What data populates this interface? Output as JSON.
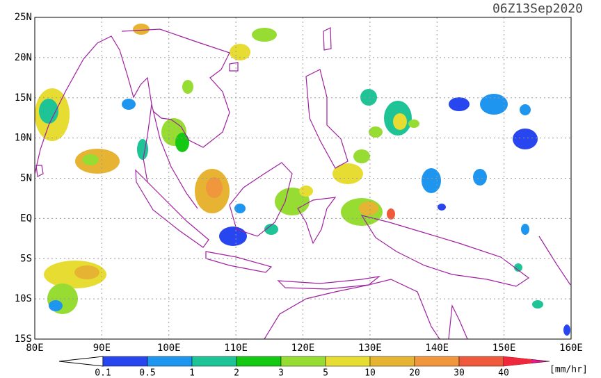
{
  "title": "06Z13Sep2020",
  "lat_labels": [
    "25N",
    "20N",
    "15N",
    "10N",
    "5N",
    "EQ",
    "5S",
    "10S",
    "15S"
  ],
  "lon_labels": [
    "80E",
    "90E",
    "100E",
    "110E",
    "120E",
    "130E",
    "140E",
    "150E",
    "160E"
  ],
  "colorbar": {
    "labels": [
      "0.1",
      "0.5",
      "1",
      "2",
      "3",
      "5",
      "10",
      "20",
      "30",
      "40"
    ],
    "unit": "[mm/hr]",
    "under_color": "#ffffff",
    "colors": [
      "#2846f0",
      "#1e96f0",
      "#1ec496",
      "#14c814",
      "#96dc32",
      "#e6dc32",
      "#e6b432",
      "#f0963c",
      "#f05a3c",
      "#f0283c"
    ],
    "over_color": "#f0148c"
  }
}
